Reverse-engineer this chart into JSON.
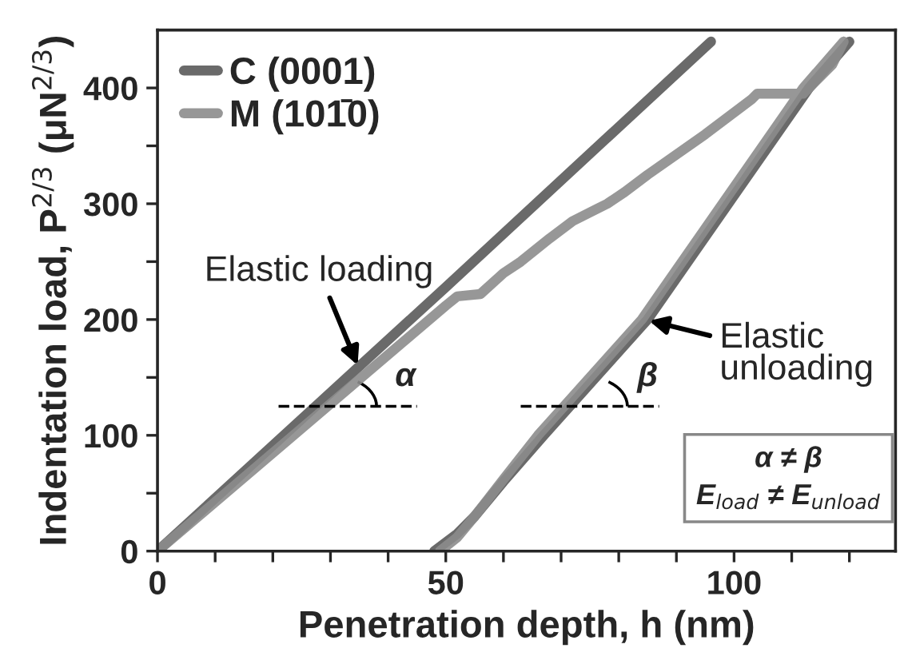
{
  "chart_data": {
    "type": "line",
    "xlabel": "Penetration depth, h (nm)",
    "ylabel": "Indentation load, P$^{2/3}$ (μN$^{2/3}$)",
    "xlim": [
      0,
      128
    ],
    "ylim": [
      0,
      450
    ],
    "xticks": [
      0,
      {
        "value": 10,
        "label": null
      },
      {
        "value": 20,
        "label": null
      },
      {
        "value": 30,
        "label": null
      },
      {
        "value": 40,
        "label": null
      },
      50,
      {
        "value": 60,
        "label": null
      },
      {
        "value": 70,
        "label": null
      },
      {
        "value": 80,
        "label": null
      },
      {
        "value": 90,
        "label": null
      },
      100,
      {
        "value": 110,
        "label": null
      },
      {
        "value": 120,
        "label": null
      }
    ],
    "yticks": [
      0,
      {
        "value": 50,
        "label": null
      },
      100,
      {
        "value": 150,
        "label": null
      },
      200,
      {
        "value": 250,
        "label": null
      },
      300,
      {
        "value": 350,
        "label": null
      },
      400
    ],
    "grid": false,
    "legend": "top left",
    "marker": "none",
    "line_style": "solid",
    "series": [
      {
        "name": "C (0001)",
        "color": "#5a5a5a",
        "x": [
          0,
          50,
          96,
          null,
          120,
          113,
          85,
          67,
          60,
          55,
          52,
          48
        ],
        "values": [
          0,
          228,
          440,
          null,
          440,
          400,
          200,
          100,
          60,
          30,
          15,
          0
        ]
      },
      {
        "name": "M (101̄0)",
        "color": "#8c8c8c",
        "x": [
          0,
          50,
          52,
          56,
          60,
          63,
          68,
          72,
          78,
          81,
          85,
          95,
          103,
          104,
          112,
          117,
          119,
          null,
          119,
          112,
          84,
          66,
          60,
          55,
          52,
          49
        ],
        "values": [
          0,
          212,
          220,
          222,
          240,
          250,
          270,
          285,
          300,
          310,
          325,
          360,
          390,
          395,
          395,
          420,
          440,
          null,
          440,
          400,
          200,
          100,
          62,
          30,
          12,
          0
        ]
      }
    ],
    "annotations": [
      {
        "text": "Elastic loading",
        "x": 35,
        "y": 157
      },
      {
        "text": "Elastic\nunloading",
        "x": 84.5,
        "y": 200
      },
      "α",
      "β",
      "α ≠ β\nE$_{load}$ ≠ E$_{unload}$"
    ]
  }
}
